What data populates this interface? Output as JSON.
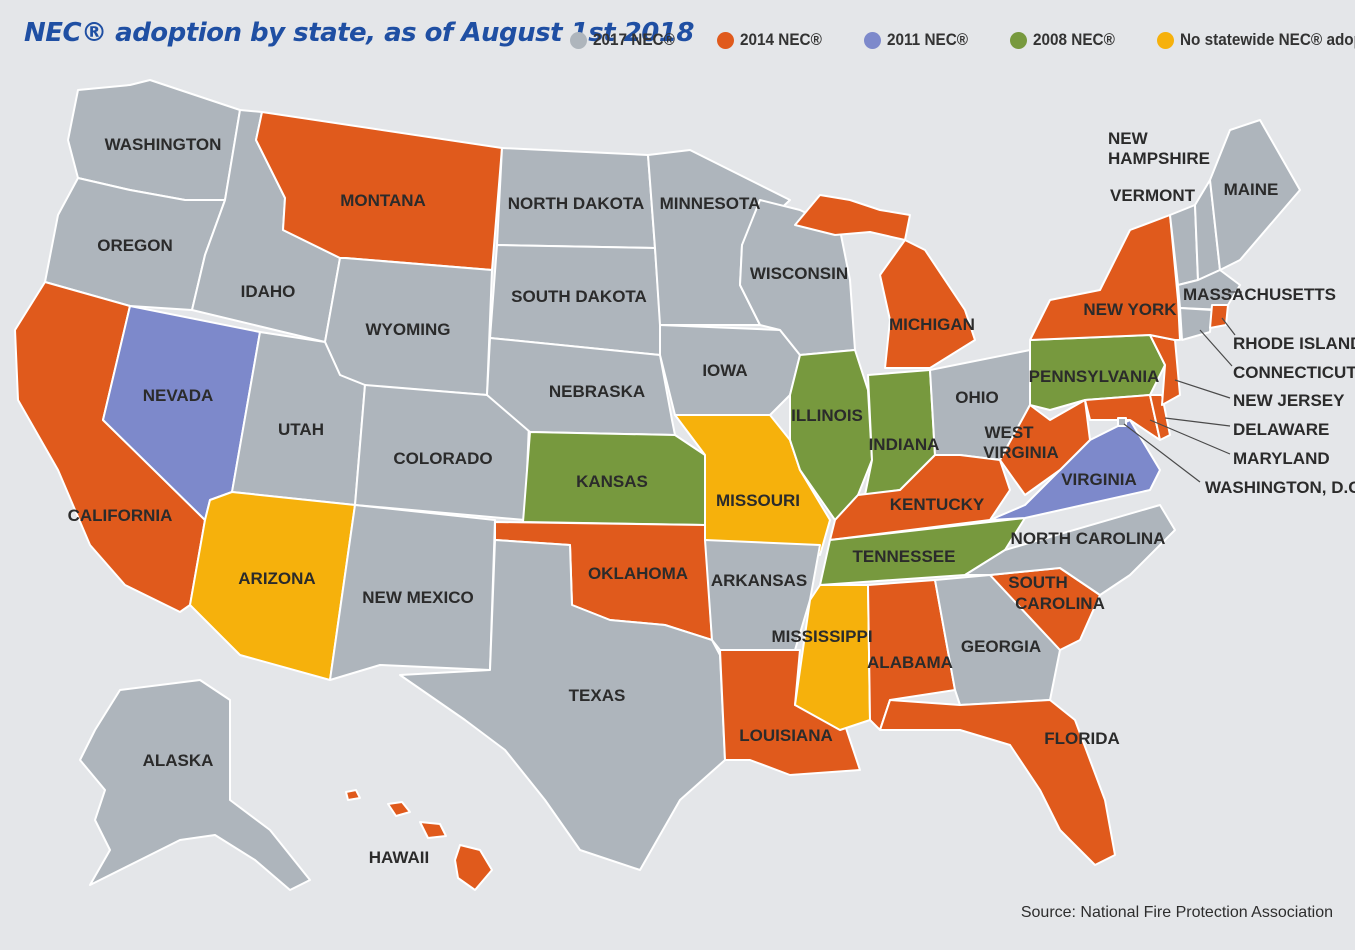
{
  "title": "NEC® adoption by state, as of August 1st 2018",
  "source": "Source: National Fire Protection Association",
  "legend": [
    {
      "key": "2017",
      "label": "2017 NEC®",
      "color": "#aeb5bc"
    },
    {
      "key": "2014",
      "label": "2014 NEC®",
      "color": "#e05a1c"
    },
    {
      "key": "2011",
      "label": "2011 NEC®",
      "color": "#7d89cb"
    },
    {
      "key": "2008",
      "label": "2008 NEC®",
      "color": "#77993e"
    },
    {
      "key": "none",
      "label": "No statewide NEC® adoption",
      "color": "#f6b10c"
    }
  ],
  "states": {
    "washington": {
      "name": "WASHINGTON",
      "code": "2017"
    },
    "oregon": {
      "name": "OREGON",
      "code": "2017"
    },
    "california": {
      "name": "CALIFORNIA",
      "code": "2014"
    },
    "nevada": {
      "name": "NEVADA",
      "code": "2011"
    },
    "idaho": {
      "name": "IDAHO",
      "code": "2017"
    },
    "montana": {
      "name": "MONTANA",
      "code": "2014"
    },
    "wyoming": {
      "name": "WYOMING",
      "code": "2017"
    },
    "utah": {
      "name": "UTAH",
      "code": "2017"
    },
    "arizona": {
      "name": "ARIZONA",
      "code": "none"
    },
    "colorado": {
      "name": "COLORADO",
      "code": "2017"
    },
    "new_mexico": {
      "name": "NEW MEXICO",
      "code": "2017"
    },
    "north_dakota": {
      "name": "NORTH DAKOTA",
      "code": "2017"
    },
    "south_dakota": {
      "name": "SOUTH DAKOTA",
      "code": "2017"
    },
    "nebraska": {
      "name": "NEBRASKA",
      "code": "2017"
    },
    "kansas": {
      "name": "KANSAS",
      "code": "2008"
    },
    "oklahoma": {
      "name": "OKLAHOMA",
      "code": "2014"
    },
    "texas": {
      "name": "TEXAS",
      "code": "2017"
    },
    "minnesota": {
      "name": "MINNESOTA",
      "code": "2017"
    },
    "iowa": {
      "name": "IOWA",
      "code": "2017"
    },
    "missouri": {
      "name": "MISSOURI",
      "code": "none"
    },
    "arkansas": {
      "name": "ARKANSAS",
      "code": "2017"
    },
    "louisiana": {
      "name": "LOUISIANA",
      "code": "2014"
    },
    "wisconsin": {
      "name": "WISCONSIN",
      "code": "2017"
    },
    "illinois": {
      "name": "ILLINOIS",
      "code": "2008"
    },
    "michigan": {
      "name": "MICHIGAN",
      "code": "2014"
    },
    "indiana": {
      "name": "INDIANA",
      "code": "2008"
    },
    "ohio": {
      "name": "OHIO",
      "code": "2017"
    },
    "kentucky": {
      "name": "KENTUCKY",
      "code": "2014"
    },
    "tennessee": {
      "name": "TENNESSEE",
      "code": "2008"
    },
    "mississippi": {
      "name": "MISSISSIPPI",
      "code": "none"
    },
    "alabama": {
      "name": "ALABAMA",
      "code": "2014"
    },
    "georgia": {
      "name": "GEORGIA",
      "code": "2017"
    },
    "florida": {
      "name": "FLORIDA",
      "code": "2014"
    },
    "south_carolina": {
      "name_line1": "SOUTH",
      "name_line2": "CAROLINA",
      "code": "2014"
    },
    "north_carolina": {
      "name": "NORTH CAROLINA",
      "code": "2017"
    },
    "virginia": {
      "name": "VIRGINIA",
      "code": "2011"
    },
    "west_virginia": {
      "name_line1": "WEST",
      "name_line2": "VIRGINIA",
      "code": "2014"
    },
    "pennsylvania": {
      "name": "PENNSYLVANIA",
      "code": "2008"
    },
    "new_york": {
      "name": "NEW YORK",
      "code": "2014"
    },
    "maine": {
      "name": "MAINE",
      "code": "2017"
    },
    "new_hampshire": {
      "name_line1": "NEW",
      "name_line2": "HAMPSHIRE",
      "code": "2017"
    },
    "vermont": {
      "name": "VERMONT",
      "code": "2017"
    },
    "massachusetts": {
      "name": "MASSACHUSETTS",
      "code": "2017"
    },
    "rhode_island": {
      "name": "RHODE ISLAND",
      "code": "2014"
    },
    "connecticut": {
      "name": "CONNECTICUT",
      "code": "2017"
    },
    "new_jersey": {
      "name": "NEW JERSEY",
      "code": "2014"
    },
    "delaware": {
      "name": "DELAWARE",
      "code": "2014"
    },
    "maryland": {
      "name": "MARYLAND",
      "code": "2014"
    },
    "dc": {
      "name": "WASHINGTON, D.C.",
      "code": "2017"
    },
    "alaska": {
      "name": "ALASKA",
      "code": "2017"
    },
    "hawaii": {
      "name": "HAWAII",
      "code": "2014"
    }
  }
}
